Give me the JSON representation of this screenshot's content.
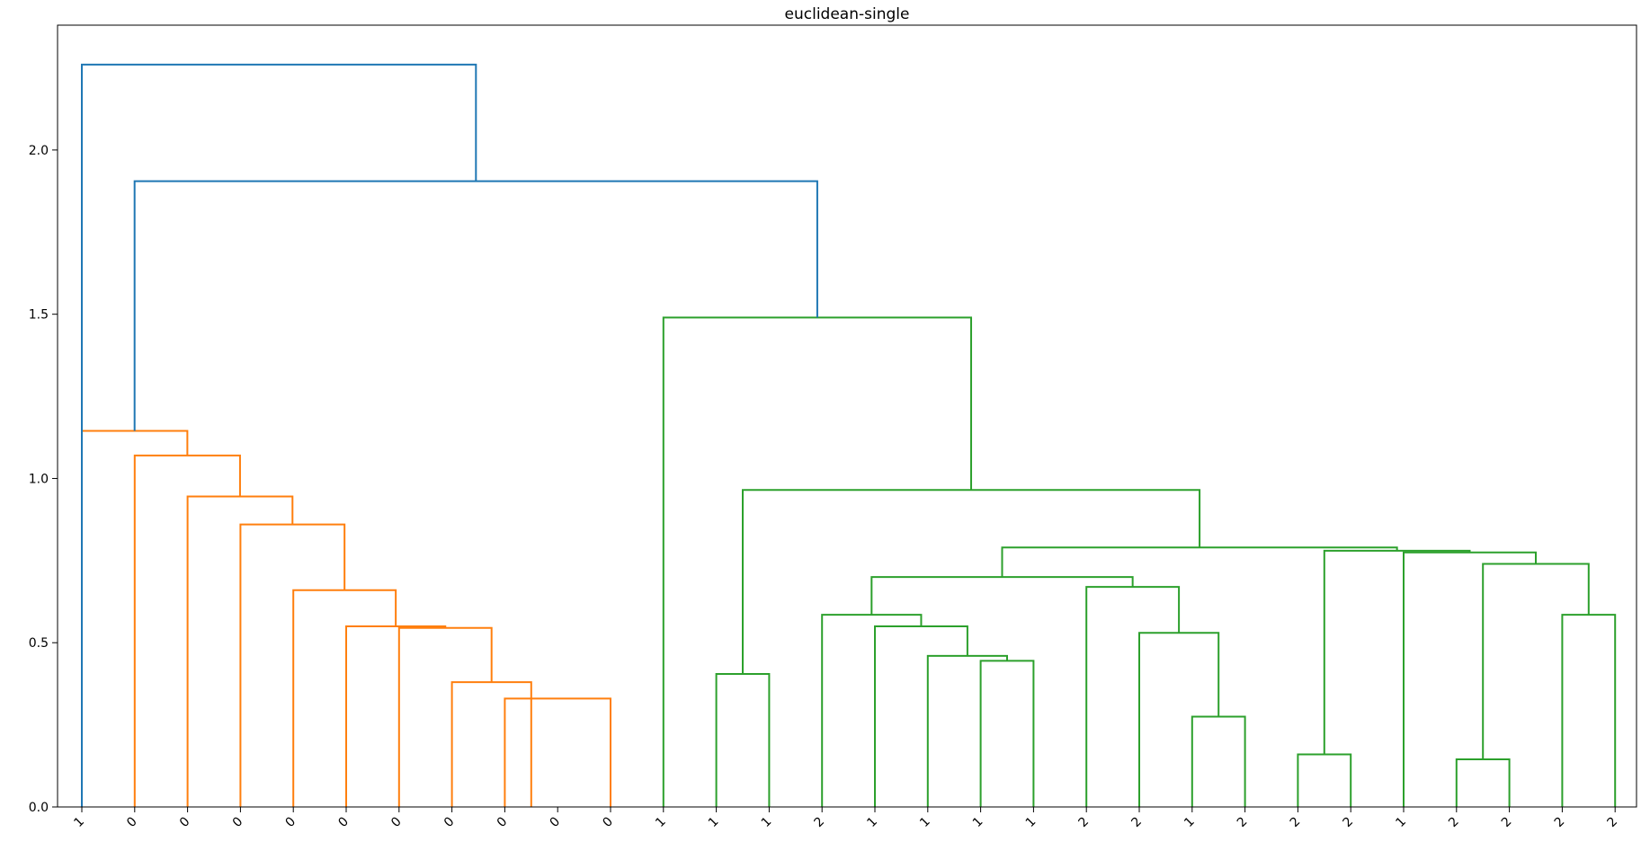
{
  "chart_data": {
    "type": "dendrogram",
    "title": "euclidean-single",
    "xlabel": "",
    "ylabel": "",
    "ylim": [
      0,
      2.38
    ],
    "y_ticks": [
      0.0,
      0.5,
      1.0,
      1.5,
      2.0
    ],
    "y_tick_labels": [
      "0.0",
      "0.5",
      "1.0",
      "1.5",
      "2.0"
    ],
    "leaf_labels": [
      "1",
      "0",
      "0",
      "0",
      "0",
      "0",
      "0",
      "0",
      "0",
      "0",
      "0",
      "1",
      "1",
      "1",
      "2",
      "1",
      "1",
      "1",
      "1",
      "2",
      "2",
      "1",
      "2",
      "2",
      "2",
      "1",
      "2",
      "2",
      "2",
      "2"
    ],
    "colors": {
      "top": "#1f77b4",
      "cluster_1": "#ff7f0e",
      "cluster_2": "#2ca02c"
    },
    "links": [
      {
        "l": 8,
        "r": 10,
        "h": 0.33,
        "c": "cluster_1"
      },
      {
        "l": 7,
        "r": 8.5,
        "h": 0.38,
        "c": "cluster_1"
      },
      {
        "l": 6,
        "r": 7.75,
        "h": 0.545,
        "c": "cluster_1"
      },
      {
        "l": 5,
        "r": 6.875,
        "h": 0.55,
        "c": "cluster_1"
      },
      {
        "l": 4,
        "r": 5.9375,
        "h": 0.66,
        "c": "cluster_1"
      },
      {
        "l": 3,
        "r": 4.96875,
        "h": 0.86,
        "c": "cluster_1"
      },
      {
        "l": 2,
        "r": 3.984375,
        "h": 0.945,
        "c": "cluster_1"
      },
      {
        "l": 1,
        "r": 2.9921875,
        "h": 1.07,
        "c": "cluster_1"
      },
      {
        "l": 0,
        "r": 1.99609375,
        "h": 1.145,
        "c": "cluster_1"
      },
      {
        "l": 12,
        "r": 13,
        "h": 0.405,
        "c": "cluster_2"
      },
      {
        "l": 17,
        "r": 18,
        "h": 0.445,
        "c": "cluster_2"
      },
      {
        "l": 16,
        "r": 17.5,
        "h": 0.46,
        "c": "cluster_2"
      },
      {
        "l": 15,
        "r": 16.75,
        "h": 0.55,
        "c": "cluster_2"
      },
      {
        "l": 14,
        "r": 15.875,
        "h": 0.585,
        "c": "cluster_2"
      },
      {
        "l": 21,
        "r": 22,
        "h": 0.275,
        "c": "cluster_2"
      },
      {
        "l": 20,
        "r": 21.5,
        "h": 0.53,
        "c": "cluster_2"
      },
      {
        "l": 19,
        "r": 20.75,
        "h": 0.67,
        "c": "cluster_2"
      },
      {
        "l": 14.9375,
        "r": 19.875,
        "h": 0.7,
        "c": "cluster_2"
      },
      {
        "l": 23,
        "r": 24,
        "h": 0.16,
        "c": "cluster_2"
      },
      {
        "l": 26,
        "r": 27,
        "h": 0.145,
        "c": "cluster_2"
      },
      {
        "l": 28,
        "r": 29,
        "h": 0.585,
        "c": "cluster_2"
      },
      {
        "l": 26.5,
        "r": 28.5,
        "h": 0.74,
        "c": "cluster_2"
      },
      {
        "l": 25,
        "r": 27.5,
        "h": 0.775,
        "c": "cluster_2"
      },
      {
        "l": 23.5,
        "r": 26.25,
        "h": 0.78,
        "c": "cluster_2"
      },
      {
        "l": 17.40625,
        "r": 24.875,
        "h": 0.79,
        "c": "cluster_2"
      },
      {
        "l": 12.5,
        "r": 21.140625,
        "h": 0.965,
        "c": "cluster_2"
      },
      {
        "l": 11,
        "r": 16.8203125,
        "h": 1.49,
        "c": "cluster_2"
      },
      {
        "l": 0.998046875,
        "r": 13.91015625,
        "h": 1.905,
        "c": "top"
      },
      {
        "l": 0,
        "r": 7.4541015625,
        "h": 2.26,
        "c": "top"
      }
    ]
  }
}
